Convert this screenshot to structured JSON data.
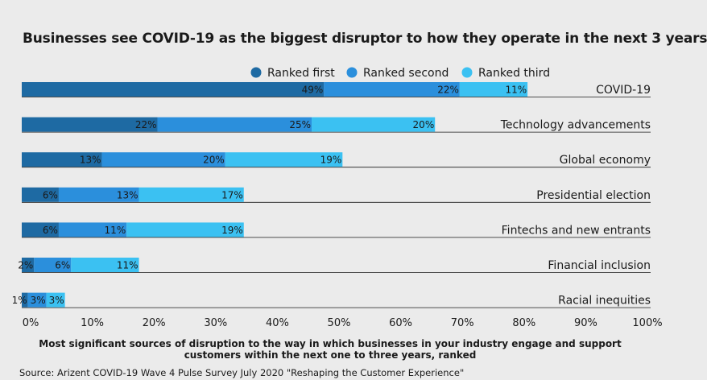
{
  "chart_data": {
    "type": "bar",
    "orientation": "horizontal",
    "stacked": true,
    "title": "Businesses see COVID-19 as the biggest disruptor to how they operate in the next 3 years",
    "xlabel": "Most significant sources of disruption to the way in which businesses in your industry engage and support customers within the next one to three years, ranked",
    "ylabel": "",
    "xlim": [
      0,
      100
    ],
    "x_ticks": [
      "0%",
      "10%",
      "20%",
      "30%",
      "40%",
      "50%",
      "60%",
      "70%",
      "80%",
      "90%",
      "100%"
    ],
    "legend_position": "top-right",
    "grid": false,
    "categories": [
      "COVID-19",
      "Technology advancements",
      "Global economy",
      "Presidential election",
      "Fintechs and new entrants",
      "Financial inclusion",
      "Racial inequities"
    ],
    "series": [
      {
        "name": "Ranked first",
        "color": "#1e6aa3",
        "values": [
          49,
          22,
          13,
          6,
          6,
          2,
          1
        ],
        "labels": [
          "49%",
          "22%",
          "13%",
          "6%",
          "6%",
          "2%",
          "1%"
        ]
      },
      {
        "name": "Ranked second",
        "color": "#2b8fdc",
        "values": [
          22,
          25,
          20,
          13,
          11,
          6,
          3
        ],
        "labels": [
          "22%",
          "25%",
          "20%",
          "13%",
          "11%",
          "6%",
          "3%"
        ]
      },
      {
        "name": "Ranked third",
        "color": "#3bc1f2",
        "values": [
          11,
          20,
          19,
          17,
          19,
          11,
          3
        ],
        "labels": [
          "11%",
          "20%",
          "19%",
          "17%",
          "19%",
          "11%",
          "3%"
        ]
      }
    ]
  },
  "source": "Source: Arizent COVID-19 Wave 4 Pulse Survey July 2020 \"Reshaping the Customer Experience\""
}
